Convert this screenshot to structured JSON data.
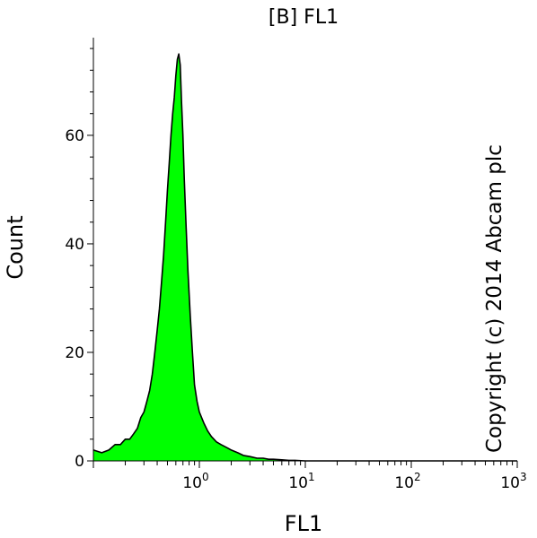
{
  "chart_data": {
    "type": "area",
    "title": "[B] FL1",
    "xlabel": "FL1",
    "ylabel": "Count",
    "x_scale": "log",
    "xlim": [
      0.1,
      1000
    ],
    "ylim": [
      0,
      78
    ],
    "x_ticks": [
      {
        "value": 1,
        "base": "10",
        "exp": "0"
      },
      {
        "value": 10,
        "base": "10",
        "exp": "1"
      },
      {
        "value": 100,
        "base": "10",
        "exp": "2"
      },
      {
        "value": 1000,
        "base": "10",
        "exp": "3"
      }
    ],
    "y_ticks": [
      {
        "value": 0,
        "label": "0"
      },
      {
        "value": 20,
        "label": "20"
      },
      {
        "value": 40,
        "label": "40"
      },
      {
        "value": 60,
        "label": "60"
      }
    ],
    "fill_color": "#00ff00",
    "line_color": "#000000",
    "annotation": "Copyright (c) 2014 Abcam plc",
    "series": [
      {
        "x": [
          0.1,
          0.12,
          0.14,
          0.16,
          0.18,
          0.2,
          0.22,
          0.24,
          0.26,
          0.28,
          0.3,
          0.32,
          0.34,
          0.36,
          0.38,
          0.4,
          0.42,
          0.44,
          0.46,
          0.48,
          0.5,
          0.52,
          0.54,
          0.56,
          0.58,
          0.6,
          0.62,
          0.64,
          0.66,
          0.68,
          0.7,
          0.72,
          0.75,
          0.78,
          0.82,
          0.86,
          0.9,
          0.95,
          1.0,
          1.1,
          1.2,
          1.3,
          1.45,
          1.6,
          1.8,
          2.0,
          2.3,
          2.6,
          3.0,
          3.5,
          4.0,
          4.5,
          5.0,
          6.0,
          7.0,
          8.0,
          10,
          15,
          30,
          100,
          1000
        ],
        "y": [
          2,
          1.5,
          2,
          3,
          3,
          4,
          4,
          5,
          6,
          8,
          9,
          11,
          13,
          16,
          20,
          24,
          28,
          33,
          38,
          44,
          50,
          55,
          60,
          64,
          67,
          71,
          74,
          75,
          73,
          66,
          60,
          52,
          43,
          35,
          27,
          20,
          14,
          11,
          9,
          7,
          5.5,
          4.5,
          3.5,
          3,
          2.5,
          2,
          1.5,
          1,
          0.8,
          0.5,
          0.5,
          0.3,
          0.3,
          0.2,
          0.1,
          0.1,
          0,
          0,
          0,
          0,
          0
        ]
      }
    ]
  }
}
